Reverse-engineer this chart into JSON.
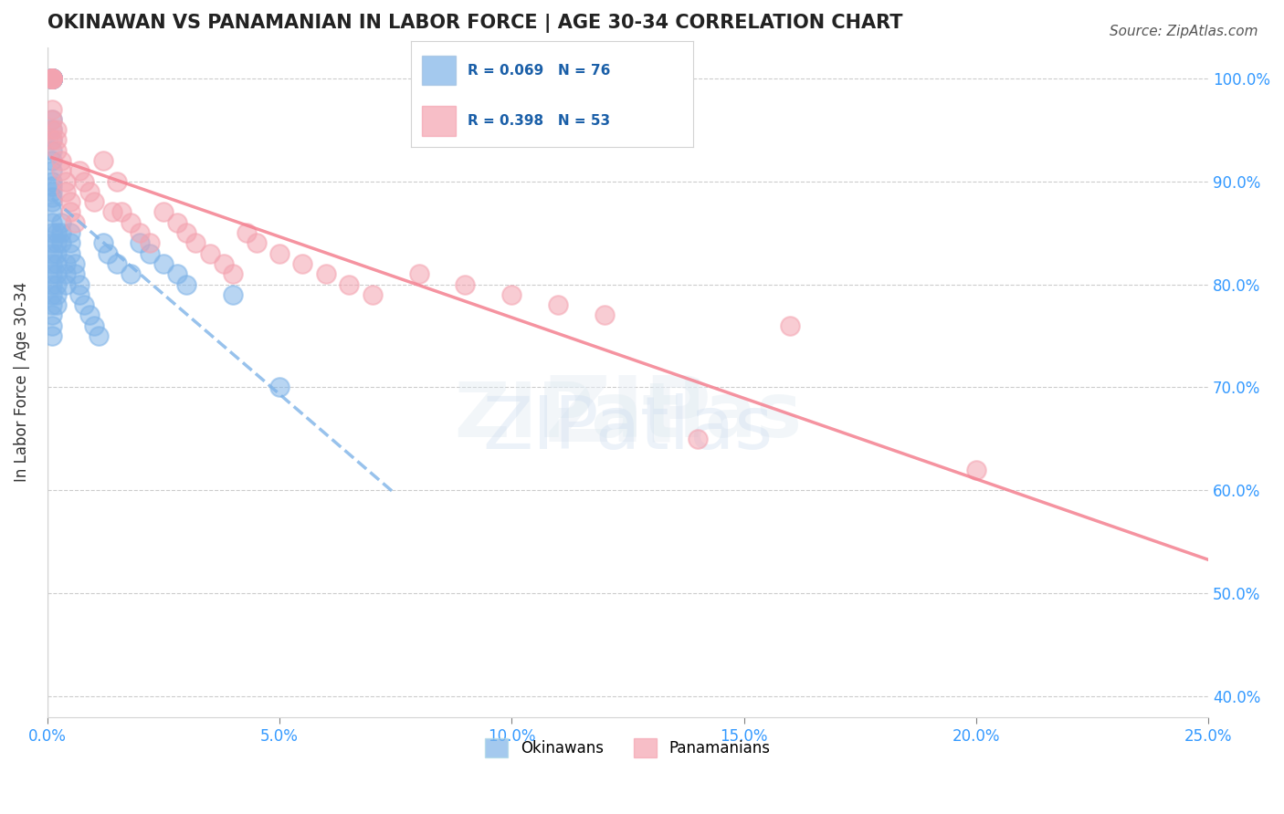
{
  "title": "OKINAWAN VS PANAMANIAN IN LABOR FORCE | AGE 30-34 CORRELATION CHART",
  "source": "Source: ZipAtlas.com",
  "xlabel": "",
  "ylabel": "In Labor Force | Age 30-34",
  "xlim": [
    0.0,
    0.25
  ],
  "ylim": [
    0.38,
    1.03
  ],
  "yticks": [
    0.4,
    0.5,
    0.6,
    0.7,
    0.8,
    0.9,
    1.0
  ],
  "xticks": [
    0.0,
    0.05,
    0.1,
    0.15,
    0.2,
    0.25
  ],
  "legend_labels": [
    "Okinawans",
    "Panamanians"
  ],
  "r_okinawan": 0.069,
  "n_okinawan": 76,
  "r_panamanian": 0.398,
  "n_panamanian": 53,
  "color_okinawan": "#7EB3E8",
  "color_panamanian": "#F4A3B0",
  "color_okinawan_line": "#7EB3E8",
  "color_panamanian_line": "#F48090",
  "background_color": "#FFFFFF",
  "watermark": "ZIPatlas",
  "okinawan_x": [
    0.001,
    0.001,
    0.001,
    0.001,
    0.001,
    0.001,
    0.001,
    0.001,
    0.001,
    0.001,
    0.001,
    0.001,
    0.001,
    0.001,
    0.001,
    0.001,
    0.001,
    0.001,
    0.001,
    0.001,
    0.001,
    0.001,
    0.001,
    0.001,
    0.001,
    0.001,
    0.001,
    0.001,
    0.001,
    0.001,
    0.001,
    0.001,
    0.001,
    0.001,
    0.001,
    0.001,
    0.001,
    0.001,
    0.001,
    0.001,
    0.002,
    0.002,
    0.002,
    0.002,
    0.002,
    0.002,
    0.002,
    0.002,
    0.003,
    0.003,
    0.003,
    0.004,
    0.004,
    0.004,
    0.005,
    0.005,
    0.005,
    0.006,
    0.006,
    0.007,
    0.007,
    0.008,
    0.009,
    0.01,
    0.011,
    0.012,
    0.013,
    0.015,
    0.018,
    0.02,
    0.022,
    0.025,
    0.028,
    0.03,
    0.04,
    0.05
  ],
  "okinawan_y": [
    1.0,
    1.0,
    1.0,
    1.0,
    1.0,
    1.0,
    1.0,
    1.0,
    1.0,
    1.0,
    1.0,
    1.0,
    1.0,
    1.0,
    1.0,
    1.0,
    0.96,
    0.95,
    0.94,
    0.93,
    0.92,
    0.91,
    0.9,
    0.895,
    0.89,
    0.885,
    0.88,
    0.87,
    0.86,
    0.85,
    0.84,
    0.83,
    0.82,
    0.81,
    0.8,
    0.79,
    0.78,
    0.77,
    0.76,
    0.75,
    0.85,
    0.84,
    0.83,
    0.82,
    0.81,
    0.8,
    0.79,
    0.78,
    0.86,
    0.85,
    0.84,
    0.82,
    0.81,
    0.8,
    0.85,
    0.84,
    0.83,
    0.82,
    0.81,
    0.8,
    0.79,
    0.78,
    0.77,
    0.76,
    0.75,
    0.84,
    0.83,
    0.82,
    0.81,
    0.84,
    0.83,
    0.82,
    0.81,
    0.8,
    0.79,
    0.7
  ],
  "panamanian_x": [
    0.001,
    0.001,
    0.001,
    0.001,
    0.001,
    0.001,
    0.001,
    0.001,
    0.001,
    0.001,
    0.002,
    0.002,
    0.002,
    0.003,
    0.003,
    0.004,
    0.004,
    0.005,
    0.005,
    0.006,
    0.007,
    0.008,
    0.009,
    0.01,
    0.012,
    0.014,
    0.015,
    0.016,
    0.018,
    0.02,
    0.022,
    0.025,
    0.028,
    0.03,
    0.032,
    0.035,
    0.038,
    0.04,
    0.043,
    0.045,
    0.05,
    0.055,
    0.06,
    0.065,
    0.07,
    0.08,
    0.09,
    0.1,
    0.11,
    0.12,
    0.14,
    0.16,
    0.2
  ],
  "panamanian_y": [
    1.0,
    1.0,
    1.0,
    1.0,
    1.0,
    1.0,
    0.97,
    0.96,
    0.95,
    0.94,
    0.95,
    0.94,
    0.93,
    0.92,
    0.91,
    0.9,
    0.89,
    0.88,
    0.87,
    0.86,
    0.91,
    0.9,
    0.89,
    0.88,
    0.92,
    0.87,
    0.9,
    0.87,
    0.86,
    0.85,
    0.84,
    0.87,
    0.86,
    0.85,
    0.84,
    0.83,
    0.82,
    0.81,
    0.85,
    0.84,
    0.83,
    0.82,
    0.81,
    0.8,
    0.79,
    0.81,
    0.8,
    0.79,
    0.78,
    0.77,
    0.65,
    0.76,
    0.62
  ]
}
